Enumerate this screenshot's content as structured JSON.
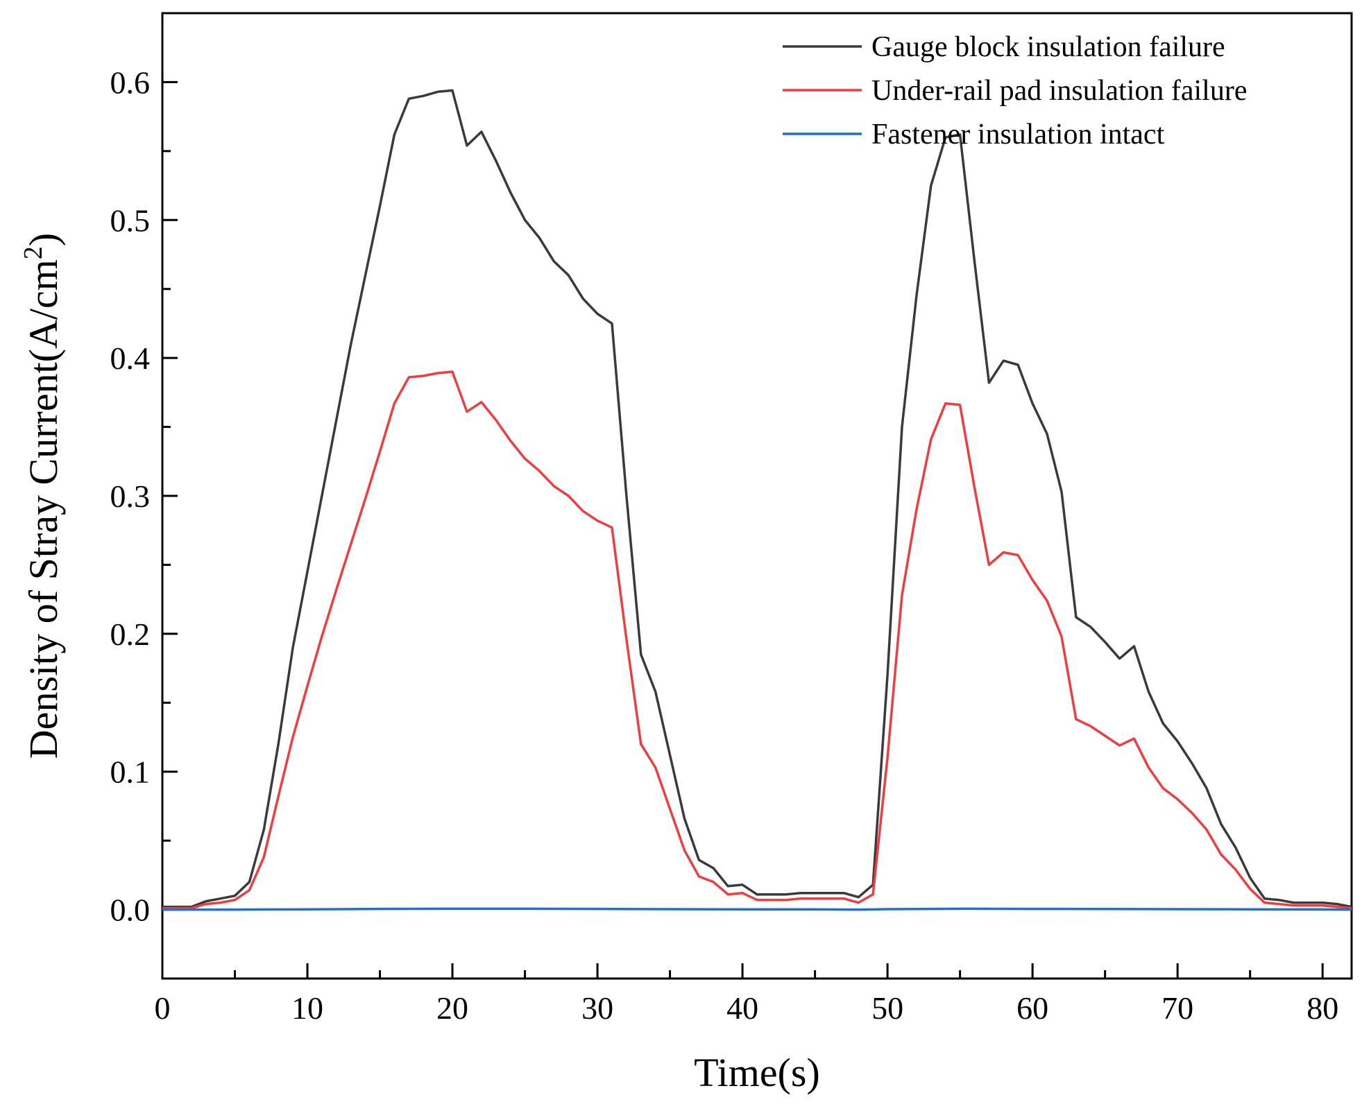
{
  "chart_data": {
    "type": "line",
    "title": "",
    "xlabel": "Time(s)",
    "ylabel": "Density of Stray Current(A/cm",
    "ylabel_sup": "2",
    "ylabel_close": ")",
    "xlim": [
      0,
      82
    ],
    "ylim": [
      -0.05,
      0.65
    ],
    "xticks": [
      0,
      10,
      20,
      30,
      40,
      50,
      60,
      70,
      80
    ],
    "xtick_labels": [
      "0",
      "10",
      "20",
      "30",
      "40",
      "50",
      "60",
      "70",
      "80"
    ],
    "yticks": [
      0.0,
      0.1,
      0.2,
      0.3,
      0.4,
      0.5,
      0.6
    ],
    "ytick_labels": [
      "0.0",
      "0.1",
      "0.2",
      "0.3",
      "0.4",
      "0.5",
      "0.6"
    ],
    "grid": false,
    "legend_position": "top-right",
    "series": [
      {
        "name": "Gauge block insulation failure",
        "color": "#3a3a3a",
        "x": [
          0,
          1,
          2,
          3,
          4,
          5,
          6,
          7,
          8,
          9,
          10,
          11,
          12,
          13,
          14,
          15,
          16,
          17,
          18,
          19,
          20,
          21,
          22,
          23,
          24,
          25,
          26,
          27,
          28,
          29,
          30,
          31,
          32,
          33,
          34,
          35,
          36,
          37,
          38,
          39,
          40,
          41,
          42,
          43,
          44,
          45,
          46,
          47,
          48,
          49,
          50,
          51,
          52,
          53,
          54,
          55,
          56,
          57,
          58,
          59,
          60,
          61,
          62,
          63,
          64,
          65,
          66,
          67,
          68,
          69,
          70,
          71,
          72,
          73,
          74,
          75,
          76,
          77,
          78,
          79,
          80,
          81,
          82
        ],
        "values": [
          0.002,
          0.002,
          0.002,
          0.006,
          0.008,
          0.01,
          0.02,
          0.058,
          0.12,
          0.19,
          0.245,
          0.3,
          0.355,
          0.41,
          0.46,
          0.51,
          0.562,
          0.588,
          0.59,
          0.593,
          0.594,
          0.554,
          0.564,
          0.543,
          0.52,
          0.5,
          0.487,
          0.47,
          0.46,
          0.443,
          0.432,
          0.425,
          0.3,
          0.185,
          0.158,
          0.112,
          0.066,
          0.036,
          0.03,
          0.017,
          0.018,
          0.011,
          0.011,
          0.011,
          0.012,
          0.012,
          0.012,
          0.012,
          0.009,
          0.018,
          0.17,
          0.35,
          0.445,
          0.525,
          0.56,
          0.562,
          0.47,
          0.382,
          0.398,
          0.395,
          0.367,
          0.345,
          0.303,
          0.212,
          0.205,
          0.194,
          0.182,
          0.191,
          0.158,
          0.135,
          0.122,
          0.106,
          0.088,
          0.062,
          0.045,
          0.023,
          0.008,
          0.007,
          0.005,
          0.005,
          0.005,
          0.004,
          0.002
        ]
      },
      {
        "name": "Under-rail pad insulation failure",
        "color": "#f03c3c",
        "x": [
          0,
          1,
          2,
          3,
          4,
          5,
          6,
          7,
          8,
          9,
          10,
          11,
          12,
          13,
          14,
          15,
          16,
          17,
          18,
          19,
          20,
          21,
          22,
          23,
          24,
          25,
          26,
          27,
          28,
          29,
          30,
          31,
          32,
          33,
          34,
          35,
          36,
          37,
          38,
          39,
          40,
          41,
          42,
          43,
          44,
          45,
          46,
          47,
          48,
          49,
          50,
          51,
          52,
          53,
          54,
          55,
          56,
          57,
          58,
          59,
          60,
          61,
          62,
          63,
          64,
          65,
          66,
          67,
          68,
          69,
          70,
          71,
          72,
          73,
          74,
          75,
          76,
          77,
          78,
          79,
          80,
          81,
          82
        ],
        "values": [
          0.001,
          0.001,
          0.001,
          0.004,
          0.005,
          0.007,
          0.014,
          0.038,
          0.082,
          0.125,
          0.162,
          0.198,
          0.232,
          0.265,
          0.298,
          0.332,
          0.367,
          0.386,
          0.387,
          0.389,
          0.39,
          0.361,
          0.368,
          0.355,
          0.34,
          0.327,
          0.318,
          0.307,
          0.3,
          0.289,
          0.282,
          0.277,
          0.196,
          0.12,
          0.103,
          0.073,
          0.043,
          0.024,
          0.02,
          0.011,
          0.012,
          0.007,
          0.007,
          0.007,
          0.008,
          0.008,
          0.008,
          0.008,
          0.005,
          0.011,
          0.11,
          0.228,
          0.29,
          0.341,
          0.367,
          0.366,
          0.306,
          0.25,
          0.259,
          0.257,
          0.239,
          0.224,
          0.198,
          0.138,
          0.133,
          0.126,
          0.119,
          0.124,
          0.103,
          0.088,
          0.08,
          0.07,
          0.058,
          0.04,
          0.029,
          0.015,
          0.005,
          0.004,
          0.003,
          0.003,
          0.003,
          0.002,
          0.001
        ]
      },
      {
        "name": "Fastener insulation intact",
        "color": "#1f6fd6",
        "x": [
          0,
          5,
          10,
          15,
          20,
          25,
          30,
          35,
          40,
          45,
          48,
          50,
          55,
          60,
          65,
          70,
          75,
          80,
          82
        ],
        "values": [
          0.0,
          0.0,
          0.0002,
          0.0005,
          0.0006,
          0.0006,
          0.0005,
          0.0003,
          0.0002,
          0.0002,
          0.0,
          0.0003,
          0.0006,
          0.0005,
          0.0004,
          0.0003,
          0.0002,
          0.0001,
          0.0
        ]
      }
    ]
  }
}
